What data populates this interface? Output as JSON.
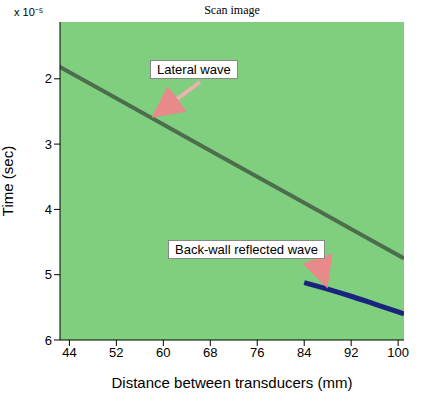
{
  "chart_data": {
    "type": "line",
    "title": "Scan image",
    "x_label": "Distance between transducers (mm)",
    "y_label": "Time (sec)",
    "y_multiplier": "x 10⁻⁵",
    "xlim": [
      42.4,
      101
    ],
    "xticks": [
      44,
      52,
      60,
      68,
      76,
      84,
      92,
      100
    ],
    "ylim": [
      1.13,
      6
    ],
    "yticks": [
      2,
      3,
      4,
      5,
      6
    ],
    "background": "#7fcf7f",
    "annotations": [
      "Lateral wave",
      "Back-wall reflected wave"
    ],
    "series": [
      {
        "color": "#4d6e4d",
        "x": [
          42,
          50,
          60,
          70,
          80,
          90,
          101
        ],
        "values": [
          1.8,
          2.2,
          2.7,
          3.2,
          3.7,
          4.2,
          4.75
        ]
      },
      {
        "color": "#1a237e",
        "x": [
          84,
          88,
          92,
          96,
          100,
          101
        ],
        "values": [
          5.12,
          5.22,
          5.33,
          5.45,
          5.57,
          5.6
        ]
      }
    ]
  }
}
